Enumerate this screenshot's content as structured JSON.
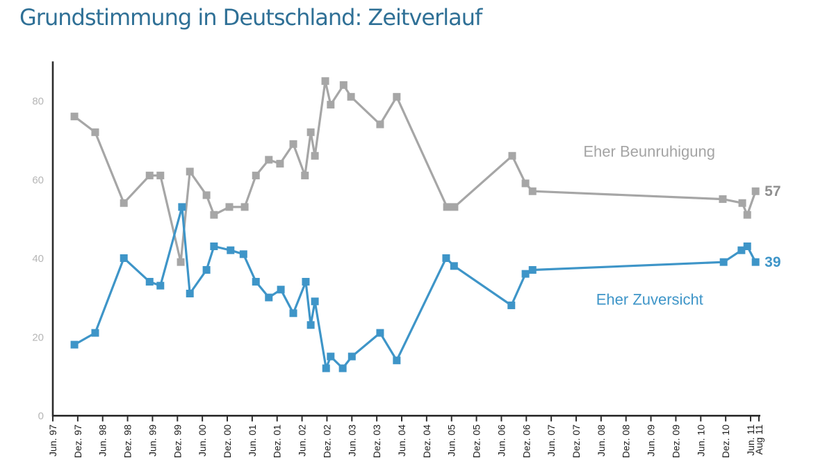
{
  "title": "Grundstimmung in Deutschland: Zeitverlauf",
  "colors": {
    "title": "#2f7096",
    "worry": "#a6a6a6",
    "confidence": "#3e95c8",
    "worry_label_text": "#a4a4a4",
    "worry_end_label": "#8f8f8f",
    "axis": "#2b2b2b",
    "x_tick_text": "#1c1c1c",
    "y_tick_text": "#b6b6b6",
    "background": "#ffffff"
  },
  "chart_data": {
    "type": "line",
    "title": "Grundstimmung in Deutschland: Zeitverlauf",
    "x_unit": "months since Jun 1997 (ticks every 6 months)",
    "grid": false,
    "x_axis": {
      "tick_labels": [
        "Jun. 97",
        "Dez. 97",
        "Jun. 98",
        "Dez. 98",
        "Jun. 99",
        "Dez. 99",
        "Jun. 00",
        "Dez. 00",
        "Jun. 01",
        "Dez. 01",
        "Jun. 02",
        "Dez. 02",
        "Jun. 03",
        "Dez. 03",
        "Jun. 04",
        "Dez. 04",
        "Jun. 05",
        "Dez. 05",
        "Jun. 06",
        "Dez. 06",
        "Jun. 07",
        "Dez. 07",
        "Jun. 08",
        "Dez. 08",
        "Jun. 09",
        "Dez. 09",
        "Jun. 10",
        "Dez. 10",
        "Jun. 11",
        "Aug 11"
      ],
      "tick_months": [
        0,
        6,
        12,
        18,
        24,
        30,
        36,
        42,
        48,
        54,
        60,
        66,
        72,
        78,
        84,
        90,
        96,
        102,
        108,
        114,
        120,
        126,
        132,
        138,
        144,
        150,
        156,
        162,
        168,
        170
      ]
    },
    "y_axis": {
      "ticks": [
        0,
        20,
        40,
        60,
        80
      ],
      "min": 0,
      "max": 90
    },
    "series": [
      {
        "name": "Eher Beunruhigung",
        "color": "#a6a6a6",
        "end_label": "57",
        "points": [
          [
            5.2,
            76
          ],
          [
            10.2,
            72
          ],
          [
            17.1,
            54
          ],
          [
            23.3,
            61
          ],
          [
            25.9,
            61
          ],
          [
            30.8,
            39
          ],
          [
            33.0,
            62
          ],
          [
            37.0,
            56
          ],
          [
            38.8,
            51
          ],
          [
            42.5,
            53
          ],
          [
            46.2,
            53
          ],
          [
            48.9,
            61
          ],
          [
            52.0,
            65
          ],
          [
            54.7,
            64
          ],
          [
            57.9,
            69
          ],
          [
            60.7,
            61
          ],
          [
            62.1,
            72
          ],
          [
            63.1,
            66
          ],
          [
            65.6,
            85
          ],
          [
            66.9,
            79
          ],
          [
            70.0,
            84
          ],
          [
            71.8,
            81
          ],
          [
            78.8,
            74
          ],
          [
            82.8,
            81
          ],
          [
            94.9,
            53
          ],
          [
            96.7,
            53
          ],
          [
            110.6,
            66
          ],
          [
            113.8,
            59
          ],
          [
            115.5,
            57
          ],
          [
            161.3,
            55
          ],
          [
            166.0,
            54
          ],
          [
            167.2,
            51
          ],
          [
            169.2,
            57
          ]
        ]
      },
      {
        "name": "Eher Zuversicht",
        "color": "#3e95c8",
        "end_label": "39",
        "points": [
          [
            5.2,
            18
          ],
          [
            10.2,
            21
          ],
          [
            17.1,
            40
          ],
          [
            23.3,
            34
          ],
          [
            25.9,
            33
          ],
          [
            31.1,
            53
          ],
          [
            33.0,
            31
          ],
          [
            37.0,
            37
          ],
          [
            38.8,
            43
          ],
          [
            42.8,
            42
          ],
          [
            45.9,
            41
          ],
          [
            48.9,
            34
          ],
          [
            52.0,
            30
          ],
          [
            54.9,
            32
          ],
          [
            57.9,
            26
          ],
          [
            60.9,
            34
          ],
          [
            62.1,
            23
          ],
          [
            63.1,
            29
          ],
          [
            65.8,
            12
          ],
          [
            66.9,
            15
          ],
          [
            69.8,
            12
          ],
          [
            72.0,
            15
          ],
          [
            78.8,
            21
          ],
          [
            82.8,
            14
          ],
          [
            94.7,
            40
          ],
          [
            96.6,
            38
          ],
          [
            110.4,
            28
          ],
          [
            113.8,
            36
          ],
          [
            115.5,
            37
          ],
          [
            161.5,
            39
          ],
          [
            165.8,
            42
          ],
          [
            167.2,
            43
          ],
          [
            169.2,
            39
          ]
        ]
      }
    ],
    "annotations": [
      {
        "text": "Eher Beunruhigung",
        "t": 143.6,
        "v": 67.1,
        "color": "#a4a4a4"
      },
      {
        "text": "Eher Zuversicht",
        "t": 143.7,
        "v": 29.5,
        "color": "#3e95c8"
      }
    ]
  }
}
